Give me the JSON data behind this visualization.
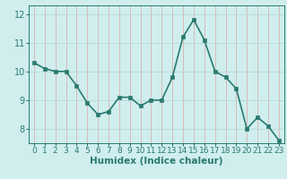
{
  "x": [
    0,
    1,
    2,
    3,
    4,
    5,
    6,
    7,
    8,
    9,
    10,
    11,
    12,
    13,
    14,
    15,
    16,
    17,
    18,
    19,
    20,
    21,
    22,
    23
  ],
  "y": [
    10.3,
    10.1,
    10.0,
    10.0,
    9.5,
    8.9,
    8.5,
    8.6,
    9.1,
    9.1,
    8.8,
    9.0,
    9.0,
    9.8,
    11.2,
    11.8,
    11.1,
    10.0,
    9.8,
    9.4,
    8.0,
    8.4,
    8.1,
    7.6
  ],
  "line_color": "#2a7a70",
  "marker_color": "#2a7a70",
  "bg_color": "#d0eeee",
  "grid_color_h": "#b8d8d8",
  "grid_color_v": "#dbb0b0",
  "xlabel": "Humidex (Indice chaleur)",
  "xlim": [
    -0.5,
    23.5
  ],
  "ylim": [
    7.5,
    12.3
  ],
  "yticks": [
    8,
    9,
    10,
    11,
    12
  ],
  "xticks": [
    0,
    1,
    2,
    3,
    4,
    5,
    6,
    7,
    8,
    9,
    10,
    11,
    12,
    13,
    14,
    15,
    16,
    17,
    18,
    19,
    20,
    21,
    22,
    23
  ],
  "xlabel_fontsize": 7.5,
  "tick_fontsize": 7,
  "line_width": 1.2,
  "marker_size": 2.5
}
